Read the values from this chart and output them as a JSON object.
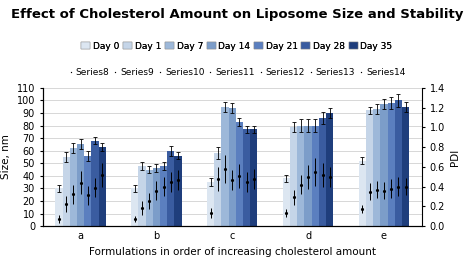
{
  "title": "Effect of Cholesterol Amount on Liposome Size and Stability",
  "xlabel": "Formulations in order of increasing cholesterol amount",
  "ylabel_left": "Size, nm",
  "ylabel_right": "PDI",
  "groups": [
    "a",
    "b",
    "c",
    "d",
    "e"
  ],
  "day_labels": [
    "Day 0",
    "Day 1",
    "Day 7",
    "Day 14",
    "Day 21",
    "Day 28",
    "Day 35"
  ],
  "series_labels": [
    "Series8",
    "Series9",
    "Series10",
    "Series11",
    "Series12",
    "Series13",
    "Series14"
  ],
  "bar_colors": [
    "#dce6f1",
    "#c5d5e8",
    "#9db8d9",
    "#7c9dc9",
    "#5b7fbf",
    "#3a5ca0",
    "#1f3e7c"
  ],
  "bar_data": [
    [
      30,
      55,
      62,
      65,
      56,
      68,
      63
    ],
    [
      30,
      48,
      45,
      46,
      48,
      60,
      56
    ],
    [
      35,
      58,
      95,
      94,
      83,
      77,
      77
    ],
    [
      38,
      79,
      80,
      80,
      80,
      86,
      90
    ],
    [
      52,
      92,
      93,
      97,
      98,
      100,
      95
    ]
  ],
  "bar_errors": [
    [
      3,
      4,
      4,
      4,
      4,
      3,
      3
    ],
    [
      3,
      3,
      3,
      3,
      3,
      4,
      3
    ],
    [
      3,
      5,
      4,
      4,
      3,
      3,
      3
    ],
    [
      3,
      4,
      5,
      5,
      5,
      5,
      4
    ],
    [
      3,
      3,
      4,
      4,
      5,
      5,
      4
    ]
  ],
  "pdi_data": [
    [
      0.07,
      0.22,
      0.32,
      0.44,
      0.31,
      0.39,
      0.52
    ],
    [
      0.07,
      0.18,
      0.25,
      0.36,
      0.4,
      0.45,
      0.47
    ],
    [
      0.13,
      0.48,
      0.58,
      0.47,
      0.51,
      0.45,
      0.48
    ],
    [
      0.13,
      0.29,
      0.42,
      0.5,
      0.55,
      0.52,
      0.5
    ],
    [
      0.17,
      0.35,
      0.37,
      0.36,
      0.38,
      0.4,
      0.4
    ]
  ],
  "pdi_errors": [
    [
      0.04,
      0.08,
      0.1,
      0.12,
      0.1,
      0.1,
      0.12
    ],
    [
      0.03,
      0.07,
      0.08,
      0.1,
      0.1,
      0.1,
      0.1
    ],
    [
      0.05,
      0.12,
      0.14,
      0.1,
      0.12,
      0.1,
      0.1
    ],
    [
      0.04,
      0.08,
      0.1,
      0.12,
      0.14,
      0.12,
      0.1
    ],
    [
      0.04,
      0.09,
      0.09,
      0.09,
      0.1,
      0.1,
      0.09
    ]
  ],
  "ylim_left": [
    0,
    110
  ],
  "ylim_right": [
    0,
    1.4
  ],
  "yticks_left": [
    0,
    10,
    20,
    30,
    40,
    50,
    60,
    70,
    80,
    90,
    100,
    110
  ],
  "yticks_right": [
    0,
    0.2,
    0.4,
    0.6,
    0.8,
    1.0,
    1.2,
    1.4
  ],
  "background_color": "#ffffff",
  "grid_color": "#c8c8c8",
  "title_fontsize": 9.5,
  "axis_fontsize": 7.5,
  "tick_fontsize": 7,
  "legend_fontsize": 6.5
}
